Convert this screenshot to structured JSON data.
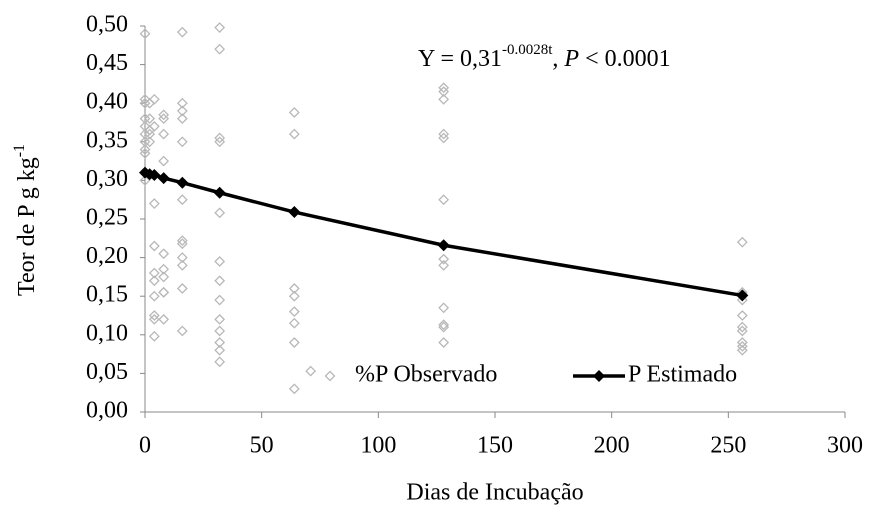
{
  "chart_data": {
    "type": "scatter",
    "annotation": [
      "Y = 0,31",
      "-0.0028t",
      ", ",
      "P",
      " < 0.0001"
    ],
    "xlabel": "Dias de Incubação",
    "ylabel": [
      "Teor de P g kg",
      "-1"
    ],
    "xlim": [
      0,
      300
    ],
    "xticks": [
      0,
      50,
      100,
      150,
      200,
      250,
      300
    ],
    "ylim": [
      0,
      0.5
    ],
    "yticks": [
      {
        "value": 0,
        "label": "0,00"
      },
      {
        "value": 0.05,
        "label": "0,05"
      },
      {
        "value": 0.1,
        "label": "0,10"
      },
      {
        "value": 0.15,
        "label": "0,15"
      },
      {
        "value": 0.2,
        "label": "0,20"
      },
      {
        "value": 0.25,
        "label": "0,25"
      },
      {
        "value": 0.3,
        "label": "0,30"
      },
      {
        "value": 0.35,
        "label": "0,35"
      },
      {
        "value": 0.4,
        "label": "0,40"
      },
      {
        "value": 0.45,
        "label": "0,45"
      },
      {
        "value": 0.5,
        "label": "0,50"
      }
    ],
    "legend": "lower center",
    "series": [
      {
        "name": "%P Observado",
        "type": "scatter",
        "color": "#b8b8b8",
        "x": [
          0,
          0,
          0,
          0,
          0,
          0,
          0,
          0,
          0,
          0,
          2,
          2,
          2,
          2,
          2,
          4,
          4,
          4,
          4,
          4,
          4,
          4,
          4,
          4,
          4,
          8,
          8,
          8,
          8,
          8,
          8,
          8,
          8,
          8,
          8,
          16,
          16,
          16,
          16,
          16,
          16,
          16,
          16,
          16,
          16,
          16,
          16,
          32,
          32,
          32,
          32,
          32,
          32,
          32,
          32,
          32,
          32,
          32,
          32,
          32,
          64,
          64,
          64,
          64,
          64,
          64,
          64,
          64,
          71,
          128,
          128,
          128,
          128,
          128,
          128,
          128,
          128,
          128,
          128,
          128,
          128,
          256,
          256,
          256,
          256,
          256,
          256,
          256,
          256,
          256,
          256
        ],
        "values": [
          0.49,
          0.405,
          0.4,
          0.38,
          0.37,
          0.36,
          0.35,
          0.34,
          0.335,
          0.3,
          0.4,
          0.38,
          0.365,
          0.36,
          0.35,
          0.405,
          0.37,
          0.27,
          0.215,
          0.18,
          0.17,
          0.15,
          0.125,
          0.12,
          0.098,
          0.385,
          0.38,
          0.36,
          0.325,
          0.205,
          0.185,
          0.175,
          0.155,
          0.155,
          0.12,
          0.492,
          0.4,
          0.39,
          0.38,
          0.35,
          0.275,
          0.222,
          0.218,
          0.2,
          0.19,
          0.16,
          0.105,
          0.498,
          0.47,
          0.355,
          0.35,
          0.258,
          0.195,
          0.17,
          0.145,
          0.12,
          0.105,
          0.09,
          0.08,
          0.065,
          0.388,
          0.36,
          0.16,
          0.15,
          0.13,
          0.115,
          0.09,
          0.03,
          0.053,
          0.42,
          0.415,
          0.405,
          0.36,
          0.355,
          0.275,
          0.198,
          0.19,
          0.135,
          0.113,
          0.11,
          0.09,
          0.22,
          0.155,
          0.15,
          0.145,
          0.125,
          0.11,
          0.105,
          0.09,
          0.085,
          0.08
        ]
      },
      {
        "name": "P Estimado",
        "type": "line",
        "color": "#000000",
        "x": [
          0,
          2,
          4,
          8,
          16,
          32,
          64,
          128,
          256
        ],
        "values": [
          0.31,
          0.308,
          0.307,
          0.303,
          0.297,
          0.284,
          0.259,
          0.216,
          0.151
        ]
      }
    ]
  }
}
